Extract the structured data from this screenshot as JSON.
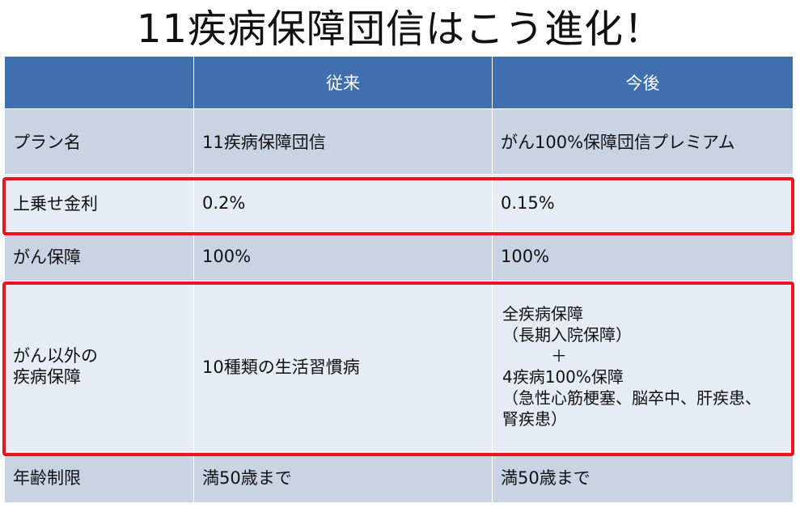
{
  "title": "11疾病保障団信はこう進化！",
  "table": {
    "headers": [
      "",
      "従来",
      "今後"
    ],
    "rows": [
      {
        "label": "プラン名",
        "before": "11疾病保障団信",
        "after": "がん100%保障団信プレミアム"
      },
      {
        "label": "上乗せ金利",
        "before": "0.2%",
        "after": "0.15%"
      },
      {
        "label": "がん保障",
        "before": "100%",
        "after": "100%"
      },
      {
        "label": "がん以外の\n疾病保障",
        "before": "10種類の生活習慣病",
        "after": "全疾病保障\n（長期入院保障）\n　　　＋\n4疾病100%保障\n（急性心筋梗塞、脳卒中、肝疾患、\n腎疾患）"
      },
      {
        "label": "年齢制限",
        "before": "満50歳まで",
        "after": "満50歳まで"
      }
    ]
  },
  "colors": {
    "header": "#3f6fae",
    "row_dark": "#c9d3e3",
    "row_light": "#e7ebf4",
    "highlight": "#e8141f"
  }
}
